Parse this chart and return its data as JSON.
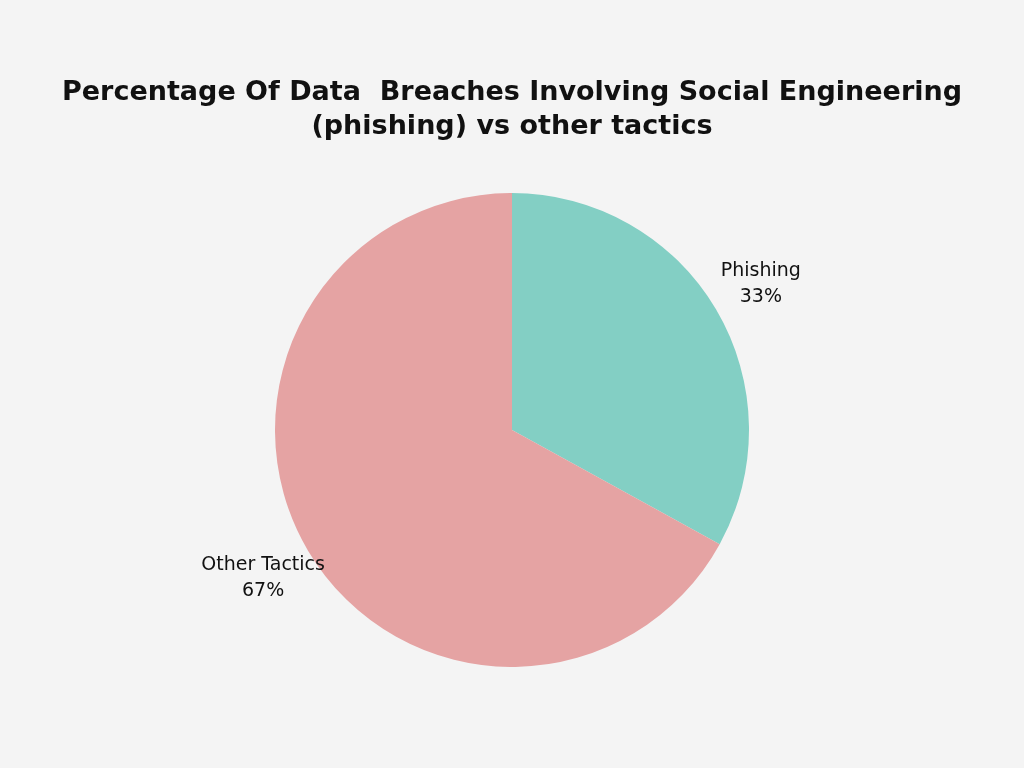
{
  "chart_data": {
    "type": "pie",
    "title": "Percentage Of Data  Breaches Involving Social Engineering (phishing) vs other tactics",
    "categories": [
      "Phishing",
      "Other Tactics"
    ],
    "values": [
      33,
      67
    ],
    "colors": [
      "#83cfc4",
      "#e5a3a3"
    ],
    "value_labels": [
      "33%",
      "67%"
    ],
    "legend": false
  }
}
